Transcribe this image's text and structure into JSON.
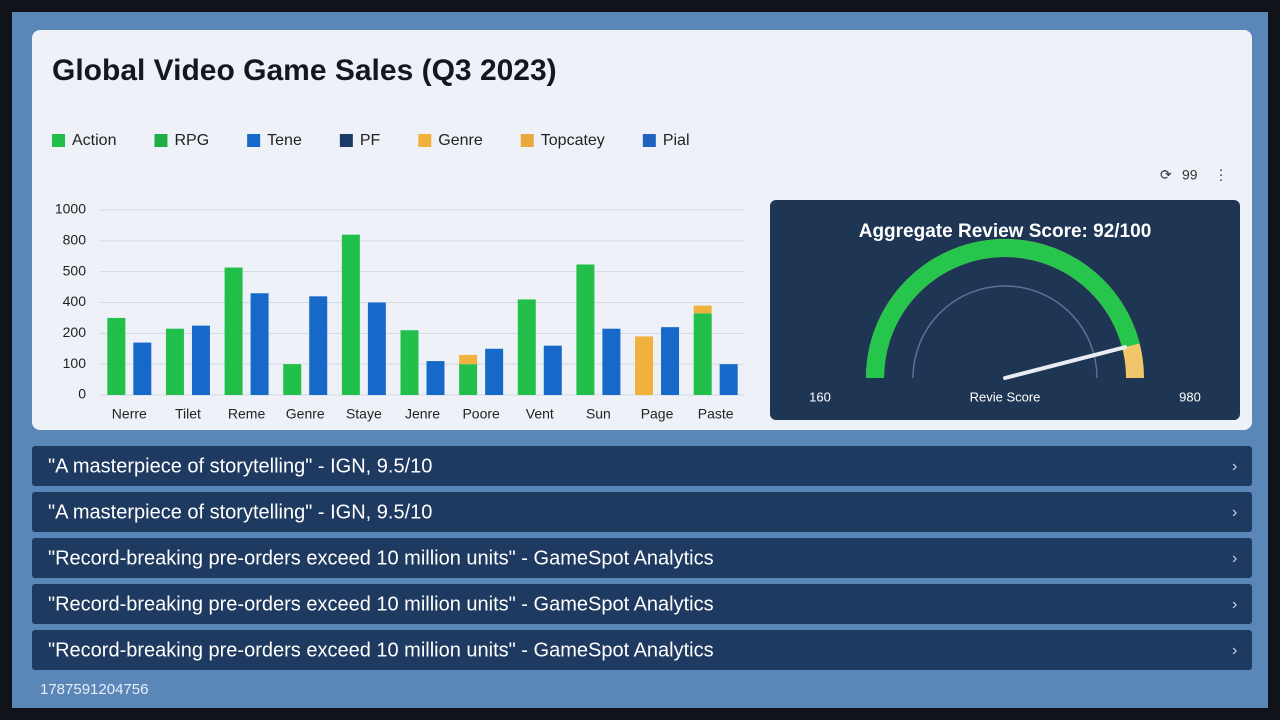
{
  "chart_data": {
    "type": "bar",
    "title": "Global Video Game Sales (Q3 2023)",
    "categories": [
      "Nerre",
      "Tilet",
      "Reme",
      "Genre",
      "Staye",
      "Jenre",
      "Poore",
      "Vent",
      "Sun",
      "Page",
      "Paste"
    ],
    "series": [
      {
        "name": "Action",
        "color": "#22c04a",
        "values": [
          300,
          230,
          540,
          100,
          840,
          220,
          100,
          410,
          570,
          null,
          330
        ]
      },
      {
        "name": "RPG",
        "color": "#1fae46",
        "values": [
          null,
          null,
          null,
          null,
          null,
          null,
          null,
          null,
          null,
          null,
          null
        ]
      },
      {
        "name": "Tene",
        "color": "#1769c9",
        "values": [
          170,
          250,
          430,
          420,
          400,
          110,
          150,
          160,
          230,
          240,
          100
        ]
      },
      {
        "name": "PF",
        "color": "#1c3a66",
        "values": [
          null,
          null,
          null,
          null,
          null,
          null,
          null,
          null,
          null,
          null,
          null
        ]
      },
      {
        "name": "Genre",
        "color": "#f0b23c",
        "values": [
          null,
          null,
          null,
          null,
          null,
          null,
          30,
          null,
          null,
          190,
          50
        ]
      },
      {
        "name": "Topcatey",
        "color": "#e8a93a",
        "values": [
          null,
          null,
          null,
          null,
          null,
          null,
          null,
          null,
          null,
          null,
          null
        ]
      },
      {
        "name": "Pial",
        "color": "#1f62c0",
        "values": [
          null,
          null,
          null,
          null,
          null,
          null,
          null,
          null,
          null,
          null,
          null
        ]
      }
    ],
    "ylim": [
      0,
      1000
    ],
    "yticks": [
      0,
      100,
      200,
      400,
      500,
      800,
      1000
    ],
    "grid": true
  },
  "toolbar": {
    "count": "99"
  },
  "gauge": {
    "title": "Aggregate Review Score: 92/100",
    "value": 92,
    "max": 100,
    "min_label": "160",
    "center_label": "Revie Score",
    "max_label": "980"
  },
  "reviews": [
    "\"A masterpiece of storytelling\" - IGN, 9.5/10",
    "\"A masterpiece of storytelling\" - IGN, 9.5/10",
    "\"Record-breaking pre-orders exceed 10 million units\" - GameSpot Analytics",
    "\"Record-breaking pre-orders exceed 10 million units\" - GameSpot Analytics",
    "\"Record-breaking pre-orders exceed 10 million units\" - GameSpot Analytics"
  ],
  "footer": {
    "id": "1787591204756"
  }
}
